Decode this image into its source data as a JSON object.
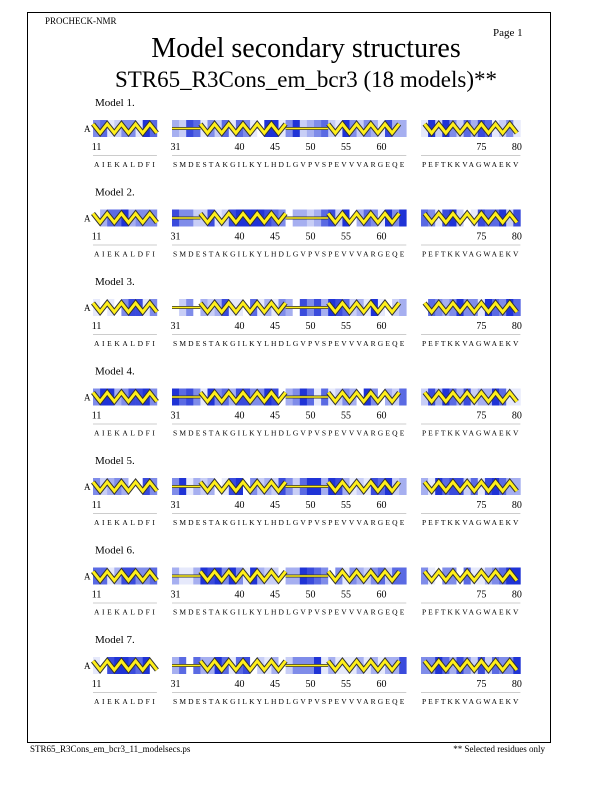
{
  "header": {
    "program": "PROCHECK-NMR",
    "page": "Page  1",
    "title": "Model secondary structures",
    "subtitle": "STR65_R3Cons_em_bcr3 (18 models)**"
  },
  "chain": "A",
  "segments": [
    {
      "ticks": [
        11
      ],
      "sequence": "AIEKALDFI"
    },
    {
      "ticks": [
        31,
        40,
        45,
        50,
        55,
        60
      ],
      "sequence": "SMDESTAKGILKYLHDLGVPVSPEVVVARGEQE"
    },
    {
      "ticks": [
        75,
        80
      ],
      "sequence": "PEFTKKVAGWAEKV"
    }
  ],
  "models": [
    "Model  1.",
    "Model  2.",
    "Model  3.",
    "Model  4.",
    "Model  5.",
    "Model  6.",
    "Model  7."
  ],
  "footer": {
    "file": "STR65_R3Cons_em_bcr3_11_modelsecs.ps",
    "note": "** Selected residues only"
  }
}
